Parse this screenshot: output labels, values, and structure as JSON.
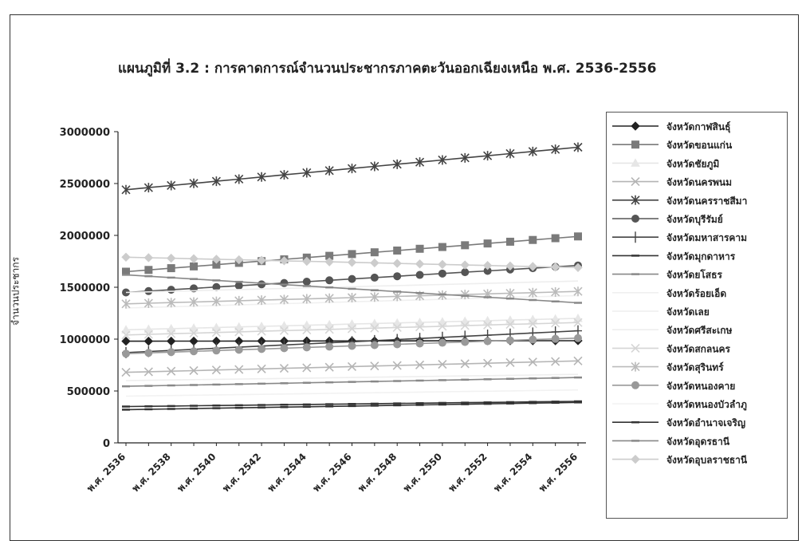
{
  "chart_data": {
    "type": "line",
    "title": "แผนภูมิที่ 3.2 : การคาดการณ์จำนวนประชากรภาคตะวันออกเฉียงเหนือ พ.ศ. 2536-2556",
    "xlabel": "",
    "ylabel": "จำนวนประชากร",
    "ylim": [
      0,
      3000000
    ],
    "yticks": [
      "0",
      "500000",
      "1000000",
      "1500000",
      "2000000",
      "2500000",
      "3000000"
    ],
    "x": [
      "พ.ศ. 2536",
      "พ.ศ. 2537",
      "พ.ศ. 2538",
      "พ.ศ. 2539",
      "พ.ศ. 2540",
      "พ.ศ. 2541",
      "พ.ศ. 2542",
      "พ.ศ. 2543",
      "พ.ศ. 2544",
      "พ.ศ. 2545",
      "พ.ศ. 2546",
      "พ.ศ. 2547",
      "พ.ศ. 2548",
      "พ.ศ. 2549",
      "พ.ศ. 2550",
      "พ.ศ. 2551",
      "พ.ศ. 2552",
      "พ.ศ. 2553",
      "พ.ศ. 2554",
      "พ.ศ. 2555",
      "พ.ศ. 2556"
    ],
    "xtick_labels": [
      "พ.ศ. 2536",
      "พ.ศ. 2538",
      "พ.ศ. 2540",
      "พ.ศ. 2542",
      "พ.ศ. 2544",
      "พ.ศ. 2546",
      "พ.ศ. 2548",
      "พ.ศ. 2550",
      "พ.ศ. 2552",
      "พ.ศ. 2554",
      "พ.ศ. 2556"
    ],
    "legend_position": "right",
    "grid": false,
    "series": [
      {
        "name": "จังหวัดกาฬสินธุ์",
        "color": "#222222",
        "marker": "diamond",
        "start": 980000,
        "end": 985000
      },
      {
        "name": "จังหวัดขอนแก่น",
        "color": "#7a7a7a",
        "marker": "square",
        "start": 1650000,
        "end": 1990000
      },
      {
        "name": "จังหวัดชัยภูมิ",
        "color": "#e6e6e6",
        "marker": "triangle",
        "start": 1090000,
        "end": 1200000
      },
      {
        "name": "จังหวัดนครพนม",
        "color": "#b5b5b5",
        "marker": "x",
        "start": 680000,
        "end": 790000
      },
      {
        "name": "จังหวัดนครราชสีมา",
        "color": "#444444",
        "marker": "star",
        "start": 2440000,
        "end": 2850000
      },
      {
        "name": "จังหวัดบุรีรัมย์",
        "color": "#555555",
        "marker": "circle",
        "start": 1450000,
        "end": 1710000
      },
      {
        "name": "จังหวัดมหาสารคาม",
        "color": "#444444",
        "marker": "plus",
        "start": 870000,
        "end": 1080000
      },
      {
        "name": "จังหวัดมุกดาหาร",
        "color": "#333333",
        "marker": "dash",
        "start": 320000,
        "end": 390000
      },
      {
        "name": "จังหวัดยโสธร",
        "color": "#888888",
        "marker": "dash",
        "start": 545000,
        "end": 630000
      },
      {
        "name": "จังหวัดร้อยเอ็ด",
        "color": "#f0f0f0",
        "marker": "none",
        "start": 1300000,
        "end": 1420000
      },
      {
        "name": "จังหวัดเลย",
        "color": "#eeeeee",
        "marker": "none",
        "start": 600000,
        "end": 660000
      },
      {
        "name": "จังหวัดศรีสะเกษ",
        "color": "#eeeeee",
        "marker": "none",
        "start": 1450000,
        "end": 1560000
      },
      {
        "name": "จังหวัดสกลนคร",
        "color": "#d5d5d5",
        "marker": "x",
        "start": 1040000,
        "end": 1160000
      },
      {
        "name": "จังหวัดสุรินทร์",
        "color": "#bbbbbb",
        "marker": "star",
        "start": 1340000,
        "end": 1460000
      },
      {
        "name": "จังหวัดหนองคาย",
        "color": "#999999",
        "marker": "circle",
        "start": 860000,
        "end": 1010000
      },
      {
        "name": "จังหวัดหนองบัวลำภู",
        "color": "#f2f2f2",
        "marker": "none",
        "start": 450000,
        "end": 510000
      },
      {
        "name": "จังหวัดอำนาจเจริญ",
        "color": "#333333",
        "marker": "dash",
        "start": 350000,
        "end": 400000
      },
      {
        "name": "จังหวัดอุดรธานี",
        "color": "#888888",
        "marker": "dash",
        "start": 1620000,
        "end": 1350000
      },
      {
        "name": "จังหวัดอุบลราชธานี",
        "color": "#cccccc",
        "marker": "diamond",
        "start": 1790000,
        "end": 1690000
      }
    ]
  }
}
